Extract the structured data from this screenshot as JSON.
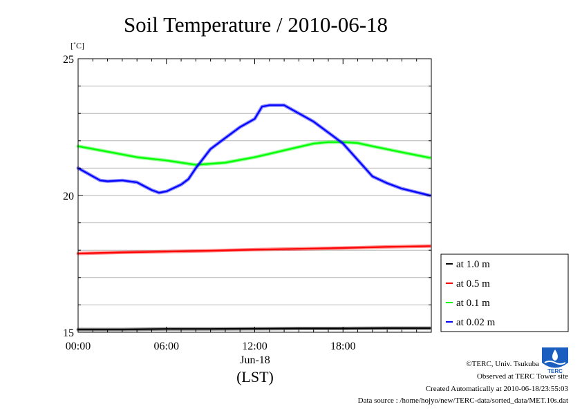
{
  "chart_data": {
    "type": "line",
    "title": "Soil Temperature / 2010-06-18",
    "ylabel": "[˚C]",
    "ylim": [
      15,
      25
    ],
    "yticks": [
      15,
      20,
      25
    ],
    "x_range_hours": [
      0,
      24
    ],
    "xticks": [
      {
        "x": 0,
        "label": "00:00"
      },
      {
        "x": 6,
        "label": "06:00"
      },
      {
        "x": 12,
        "label": "12:00"
      },
      {
        "x": 18,
        "label": "18:00"
      }
    ],
    "date_label": "Jun-18",
    "time_zone_label": "(LST)",
    "grid": true,
    "legend_position": "right",
    "series": [
      {
        "name": "at 1.0 m",
        "color": "#000000",
        "x": [
          0,
          3,
          6,
          9,
          12,
          15,
          18,
          21,
          23.9
        ],
        "values": [
          15.1,
          15.1,
          15.12,
          15.12,
          15.13,
          15.14,
          15.14,
          15.15,
          15.15
        ]
      },
      {
        "name": "at 0.5 m",
        "color": "#ff0000",
        "x": [
          0,
          3,
          6,
          9,
          12,
          15,
          18,
          21,
          23.9
        ],
        "values": [
          17.88,
          17.92,
          17.95,
          17.98,
          18.02,
          18.05,
          18.08,
          18.12,
          18.15
        ]
      },
      {
        "name": "at 0.1 m",
        "color": "#00ff00",
        "x": [
          0,
          2,
          4,
          6,
          8,
          10,
          12,
          14,
          16,
          17,
          18,
          19,
          20,
          22,
          23.9
        ],
        "values": [
          21.8,
          21.6,
          21.4,
          21.28,
          21.12,
          21.2,
          21.4,
          21.65,
          21.9,
          21.95,
          21.95,
          21.92,
          21.8,
          21.58,
          21.38
        ]
      },
      {
        "name": "at 0.02 m",
        "color": "#0000ff",
        "x": [
          0,
          1,
          1.5,
          2,
          3,
          4,
          5,
          5.5,
          6,
          7,
          7.5,
          8,
          9,
          10,
          11,
          12,
          12.5,
          13,
          14,
          15,
          16,
          17,
          18,
          19,
          20,
          21,
          22,
          23.9
        ],
        "values": [
          21.0,
          20.7,
          20.55,
          20.52,
          20.55,
          20.48,
          20.2,
          20.1,
          20.15,
          20.4,
          20.6,
          21.0,
          21.7,
          22.1,
          22.5,
          22.8,
          23.25,
          23.3,
          23.3,
          23.0,
          22.7,
          22.3,
          21.9,
          21.3,
          20.7,
          20.45,
          20.25,
          20.0
        ]
      }
    ]
  },
  "footer": {
    "copyright": "©TERC, Univ. Tsukuba",
    "site": "Observed at TERC Tower site",
    "created": "Created Automatically at 2010-06-18/23:55:03",
    "source": "Data source : /home/hojyo/new/TERC-data/sorted_data/MET.10s.dat",
    "logo_text": "TERC"
  },
  "colors": {
    "grid": "#b4b4b4",
    "logo_blue": "#1a5fc0"
  }
}
